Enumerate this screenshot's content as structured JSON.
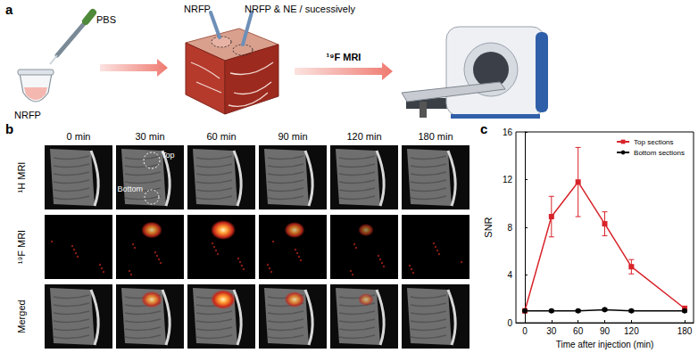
{
  "panel_a": {
    "label": "a",
    "buffer": "PBS",
    "tube": "NRFP",
    "injection_left": "NRFP",
    "injection_right": "NRFP & NE / sucessively",
    "arrow": "¹⁹F MRI"
  },
  "panel_b": {
    "label": "b",
    "columns": [
      "0 min",
      "30 min",
      "60 min",
      "90 min",
      "120 min",
      "180 min"
    ],
    "rows": [
      "¹H MRI",
      "¹⁹F MRI",
      "Merged"
    ],
    "annotations": [
      "Top",
      "Bottom"
    ]
  },
  "chart_data": {
    "panel_label": "c",
    "type": "line",
    "x_label": "Time after injection (min)",
    "y_label": "SNR",
    "x": [
      0,
      30,
      60,
      90,
      120,
      180
    ],
    "series": [
      {
        "name": "Top sections",
        "color": "#d8232a",
        "marker": "square",
        "values": [
          1.0,
          8.9,
          11.8,
          8.3,
          4.7,
          1.2
        ],
        "errors": [
          0.1,
          1.7,
          2.9,
          1.0,
          0.6,
          0.2
        ]
      },
      {
        "name": "Bottom sections",
        "color": "#000000",
        "marker": "circle",
        "values": [
          1.0,
          1.0,
          1.0,
          1.1,
          1.0,
          1.0
        ],
        "errors": [
          0.1,
          0.1,
          0.1,
          0.1,
          0.1,
          0.1
        ]
      }
    ],
    "xlim": [
      -10,
      190
    ],
    "xticks": [
      0,
      30,
      60,
      90,
      120,
      180
    ],
    "ylim": [
      0,
      16
    ],
    "yticks": [
      0,
      4,
      8,
      12,
      16
    ],
    "grid": false,
    "legend": "upper right"
  }
}
